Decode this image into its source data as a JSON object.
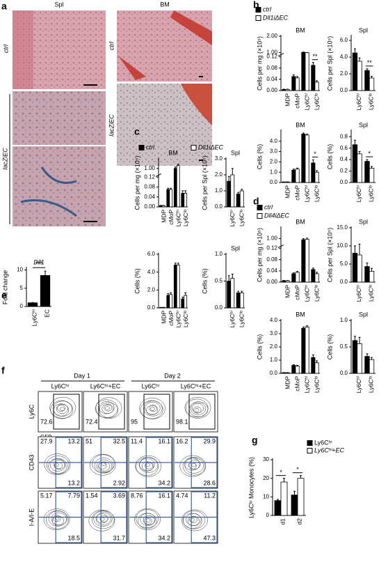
{
  "figure": {
    "panel_labels": [
      "a",
      "b",
      "c",
      "d",
      "e",
      "f",
      "g"
    ]
  },
  "histology": {
    "columns": [
      "Spl",
      "BM"
    ],
    "rows": [
      "ctrl",
      "lacZiEC",
      "ctrl",
      "lacZiEC"
    ]
  },
  "flow": {
    "days": [
      "Day 1",
      "Day 2"
    ],
    "columns": [
      "Ly6Cʰⁱ",
      "Ly6Cʰⁱ+EC",
      "Ly6Cʰⁱ",
      "Ly6Cʰⁱ+EC"
    ],
    "rows": [
      {
        "y_label": "Ly6C",
        "x_label": "GFP",
        "gates": [
          [
            72.6
          ],
          [
            72.4
          ],
          [
            95
          ],
          [
            98.1
          ]
        ]
      },
      {
        "y_label": "CD43",
        "gates": [
          [
            27.9,
            13.2,
            13.2
          ],
          [
            51,
            32.5,
            2.92
          ],
          [
            11.4,
            16.1,
            34.2
          ],
          [
            16.2,
            29.9,
            28.6
          ]
        ]
      },
      {
        "y_label": "I-A/I-E",
        "gates": [
          [
            5.17,
            7.79,
            18.5
          ],
          [
            1.54,
            3.69,
            31.7
          ],
          [
            8.76,
            16.1,
            34.2
          ],
          [
            4.74,
            11.2,
            47.3
          ]
        ]
      }
    ]
  },
  "chart_data": [
    {
      "type": "bar",
      "title": "BM",
      "y_label": "Cells per mg (×10⁵)",
      "categories": [
        "MDP",
        "cMoP",
        "Ly6Cʰⁱ",
        "Ly6Cˡᵒ"
      ],
      "series": [
        {
          "name": "ctrl",
          "color": "#000000",
          "values": [
            0.004,
            0.05,
            1.01,
            0.09
          ],
          "errors": [
            0.001,
            0.006,
            0.02,
            0.01
          ]
        },
        {
          "name": "Dll1iΔEC",
          "color": "#ffffff",
          "values": [
            0.004,
            0.045,
            0.98,
            0.03
          ],
          "errors": [
            0.001,
            0.005,
            0.02,
            0.005
          ]
        }
      ],
      "ylim": [
        0,
        2.0
      ],
      "ybreak": [
        0.12,
        1.0
      ],
      "yticks": [
        {
          "value": 0,
          "label": "0.00"
        },
        {
          "value": 0.04,
          "label": "0.04"
        },
        {
          "value": 0.08,
          "label": "0.08"
        },
        {
          "value": 0.12,
          "label": "0.12"
        },
        {
          "value": 1,
          "label": "1.00"
        },
        {
          "value": 2,
          "label": "2.00"
        }
      ],
      "significance": [
        null,
        null,
        null,
        "**"
      ]
    },
    {
      "type": "bar",
      "title": "Spl",
      "y_label": "Cells per Spl (×10⁵)",
      "categories": [
        "Ly6Cʰⁱ",
        "Ly6Cˡᵒ"
      ],
      "series": [
        {
          "color": "#000000",
          "values": [
            4.5,
            2.4
          ],
          "errors": [
            0.5,
            0.2
          ]
        },
        {
          "color": "#ffffff",
          "values": [
            3.5,
            1.5
          ],
          "errors": [
            0.4,
            0.2
          ]
        }
      ],
      "ylim": [
        0,
        6.5
      ],
      "yticks": [
        {
          "value": 0,
          "label": "0.0"
        },
        {
          "value": 2,
          "label": "2.0"
        },
        {
          "value": 4,
          "label": "4.0"
        },
        {
          "value": 6,
          "label": "6.0"
        }
      ],
      "significance": [
        null,
        "**"
      ]
    },
    {
      "type": "bar",
      "title": "BM",
      "y_label": "Cells (%)",
      "categories": [
        "MDP",
        "cMoP",
        "Ly6Cʰⁱ",
        "Ly6Cˡᵒ"
      ],
      "series": [
        {
          "color": "#000000",
          "values": [
            0.05,
            1.2,
            4.7,
            1.9
          ],
          "errors": [
            0.01,
            0.1,
            0.1,
            0.3
          ]
        },
        {
          "color": "#ffffff",
          "values": [
            0.05,
            1.3,
            4.6,
            1.0
          ],
          "errors": [
            0.01,
            0.1,
            0.1,
            0.15
          ]
        }
      ],
      "ylim": [
        0,
        5
      ],
      "yticks": [
        {
          "value": 0,
          "label": "0.0"
        },
        {
          "value": 1,
          "label": "1.0"
        },
        {
          "value": 2,
          "label": "2.0"
        },
        {
          "value": 3,
          "label": "3.0"
        },
        {
          "value": 4,
          "label": "4.0"
        }
      ],
      "significance": [
        null,
        null,
        null,
        "*"
      ]
    },
    {
      "type": "bar",
      "title": "Spl",
      "y_label": "Cells (%)",
      "categories": [
        "Ly6Cʰⁱ",
        "Ly6Cˡᵒ"
      ],
      "series": [
        {
          "color": "#000000",
          "values": [
            0.66,
            0.37
          ],
          "errors": [
            0.08,
            0.03
          ]
        },
        {
          "color": "#ffffff",
          "values": [
            0.5,
            0.25
          ],
          "errors": [
            0.04,
            0.03
          ]
        }
      ],
      "ylim": [
        0,
        0.9
      ],
      "yticks": [
        {
          "value": 0,
          "label": "0.0"
        },
        0.2,
        0.4,
        0.6,
        0.8
      ],
      "significance": [
        null,
        "*"
      ]
    },
    {
      "type": "bar",
      "title": "BM",
      "y_label": "Cells per mg (×10⁵)",
      "categories": [
        "MDP",
        "cMoP",
        "Ly6Cʰⁱ",
        "Ly6Cˡᵒ"
      ],
      "series": [
        {
          "name": "ctrl",
          "color": "#000000",
          "values": [
            0.005,
            0.07,
            1.0,
            0.055
          ],
          "errors": [
            0.001,
            0.005,
            0.03,
            0.01
          ]
        },
        {
          "name": "Dll1iΔEC",
          "color": "#ffffff",
          "values": [
            0.005,
            0.07,
            1.06,
            0.055
          ],
          "errors": [
            0.001,
            0.005,
            0.03,
            0.01
          ]
        }
      ],
      "ylim": [
        0,
        1.2
      ],
      "ybreak": [
        0.12,
        0.9
      ],
      "yticks": [
        {
          "value": 0,
          "label": "0.00"
        },
        {
          "value": 0.04,
          "label": "0.04"
        },
        {
          "value": 0.08,
          "label": "0.08"
        },
        {
          "value": 0.12,
          "label": "0.12"
        },
        {
          "value": 1,
          "label": "1.00"
        }
      ]
    },
    {
      "type": "bar",
      "title": "Spl",
      "y_label": "Cells per Spl (×10⁵)",
      "categories": [
        "Ly6Cʰⁱ",
        "Ly6Cˡᵒ"
      ],
      "series": [
        {
          "color": "#000000",
          "values": [
            1.6,
            0.8
          ],
          "errors": [
            0.3,
            0.1
          ]
        },
        {
          "color": "#ffffff",
          "values": [
            2.0,
            1.0
          ],
          "errors": [
            0.4,
            0.1
          ]
        }
      ],
      "ylim": [
        0,
        3
      ],
      "yticks": [
        {
          "value": 0,
          "label": "0.0"
        },
        {
          "value": 1,
          "label": "1.0"
        },
        {
          "value": 2,
          "label": "2.0"
        },
        {
          "value": 3,
          "label": "3.0"
        }
      ]
    },
    {
      "type": "bar",
      "y_label": "Cells (%)",
      "categories": [
        "MDP",
        "cMoP",
        "Ly6Cʰⁱ",
        "Ly6Cˡᵒ"
      ],
      "series": [
        {
          "color": "#000000",
          "values": [
            0.05,
            1.4,
            4.8,
            1.0
          ],
          "errors": [
            0.01,
            0.2,
            0.2,
            0.2
          ]
        },
        {
          "color": "#ffffff",
          "values": [
            0.05,
            1.5,
            4.8,
            1.4
          ],
          "errors": [
            0.01,
            0.2,
            0.2,
            0.3
          ]
        }
      ],
      "ylim": [
        0,
        6
      ],
      "yticks": [
        {
          "value": 0,
          "label": "0.0"
        },
        {
          "value": 2,
          "label": "2.0"
        },
        {
          "value": 4,
          "label": "4.0"
        },
        {
          "value": 6,
          "label": "6.0"
        }
      ]
    },
    {
      "type": "bar",
      "title": "Spl",
      "y_label": "Cells (%)",
      "categories": [
        "Ly6Cʰⁱ",
        "Ly6Cˡᵒ"
      ],
      "series": [
        {
          "color": "#000000",
          "values": [
            0.5,
            0.28
          ],
          "errors": [
            0.1,
            0.03
          ]
        },
        {
          "color": "#ffffff",
          "values": [
            0.55,
            0.28
          ],
          "errors": [
            0.08,
            0.03
          ]
        }
      ],
      "ylim": [
        0,
        1
      ],
      "yticks": [
        {
          "value": 0,
          "label": "0.0"
        },
        0.5,
        {
          "value": 1,
          "label": "1.0"
        }
      ]
    },
    {
      "type": "bar",
      "title": "BM",
      "y_label": "Cells per mg (×10⁵)",
      "categories": [
        "MDP",
        "cMoP",
        "Ly6Cʰⁱ",
        "Ly6Cˡᵒ"
      ],
      "series": [
        {
          "name": "ctrl",
          "color": "#000000",
          "values": [
            0.005,
            0.03,
            0.98,
            0.045
          ],
          "errors": [
            0.001,
            0.003,
            0.02,
            0.005
          ]
        },
        {
          "name": "Dll4iΔEC",
          "color": "#ffffff",
          "values": [
            0.005,
            0.035,
            0.99,
            0.03
          ],
          "errors": [
            0.001,
            0.003,
            0.02,
            0.005
          ]
        }
      ],
      "ylim": [
        0,
        1.2
      ],
      "ybreak": [
        0.12,
        0.9
      ],
      "yticks": [
        {
          "value": 0,
          "label": "0.00"
        },
        {
          "value": 0.04,
          "label": "0.04"
        },
        {
          "value": 0.08,
          "label": "0.08"
        },
        {
          "value": 0.12,
          "label": "0.12"
        },
        {
          "value": 1,
          "label": "1.00"
        }
      ]
    },
    {
      "type": "bar",
      "title": "Spl",
      "y_label": "Cells per Spl (×10⁵)",
      "categories": [
        "Ly6Cʰⁱ",
        "Ly6Cˡᵒ"
      ],
      "series": [
        {
          "color": "#000000",
          "values": [
            8,
            4.3
          ],
          "errors": [
            2,
            1
          ]
        },
        {
          "color": "#ffffff",
          "values": [
            7.5,
            3
          ],
          "errors": [
            3,
            0.8
          ]
        }
      ],
      "ylim": [
        0,
        15
      ],
      "yticks": [
        {
          "value": 0,
          "label": "0.0"
        },
        {
          "value": 5,
          "label": "5.0"
        },
        {
          "value": 10,
          "label": "10.0"
        },
        {
          "value": 15,
          "label": "15.0"
        }
      ]
    },
    {
      "type": "bar",
      "title": "BM",
      "y_label": "Cells (%)",
      "categories": [
        "MDP",
        "cMoP",
        "Ly6Cʰⁱ",
        "Ly6Cˡᵒ"
      ],
      "series": [
        {
          "color": "#000000",
          "values": [
            0.05,
            0.6,
            3.4,
            1.2
          ],
          "errors": [
            0.01,
            0.05,
            0.1,
            0.2
          ]
        },
        {
          "color": "#ffffff",
          "values": [
            0.05,
            0.55,
            3.5,
            0.8
          ],
          "errors": [
            0.01,
            0.05,
            0.1,
            0.15
          ]
        }
      ],
      "ylim": [
        0,
        4
      ],
      "yticks": [
        {
          "value": 0,
          "label": "0.0"
        },
        {
          "value": 1,
          "label": "1.0"
        },
        {
          "value": 2,
          "label": "2.0"
        },
        {
          "value": 3,
          "label": "3.0"
        },
        {
          "value": 4,
          "label": "4.0"
        }
      ]
    },
    {
      "type": "bar",
      "title": "Spl",
      "y_label": "Cells (%)",
      "categories": [
        "Ly6Cʰⁱ",
        "Ly6Cˡᵒ"
      ],
      "series": [
        {
          "color": "#000000",
          "values": [
            0.62,
            0.32
          ],
          "errors": [
            0.08,
            0.05
          ]
        },
        {
          "color": "#ffffff",
          "values": [
            0.56,
            0.26
          ],
          "errors": [
            0.12,
            0.04
          ]
        }
      ],
      "ylim": [
        0,
        1
      ],
      "yticks": [
        {
          "value": 0,
          "label": "0.0"
        },
        0.5,
        {
          "value": 1,
          "label": "1.0"
        }
      ]
    },
    {
      "type": "bar",
      "title": "Dll1",
      "y_label": "Fold change",
      "categories": [
        "Ly6Cʰⁱ",
        "EC"
      ],
      "series": [
        {
          "color": "#000000",
          "values": [
            1,
            8.5
          ],
          "errors": [
            0.1,
            1.2
          ]
        }
      ],
      "ylim": [
        0,
        10.5
      ],
      "yticks": [
        0,
        5,
        10
      ],
      "annotation": "***"
    },
    {
      "type": "bar",
      "y_label": "Ly6Cˡᵒ Monocytes (%)",
      "categories": [
        "d1",
        "d2"
      ],
      "series": [
        {
          "name": "Ly6Cʰⁱ",
          "color": "#000000",
          "values": [
            8,
            11
          ],
          "errors": [
            0.6,
            2
          ]
        },
        {
          "name": "Ly6Cʰⁱ+EC",
          "color": "#ffffff",
          "values": [
            18,
            20
          ],
          "errors": [
            2,
            1.5
          ]
        }
      ],
      "ylim": [
        0,
        30
      ],
      "yticks": [
        0,
        10,
        20,
        30
      ],
      "significance": [
        "*",
        "*"
      ]
    }
  ]
}
